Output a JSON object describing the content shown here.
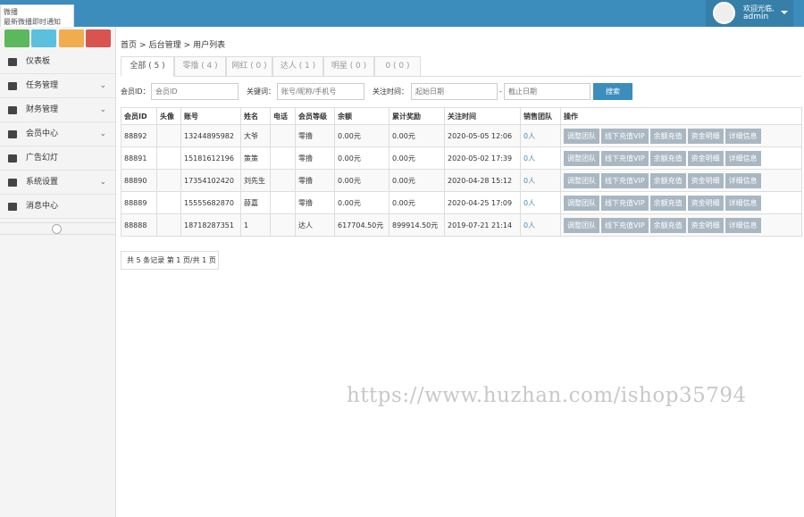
{
  "header": {
    "notice_title": "微播",
    "notice_sub": "最新微播即时通知",
    "welcome": "欢迎光临,",
    "user": "admin"
  },
  "sidebar": {
    "menu": [
      "仪表板",
      "任务管理",
      "财务管理",
      "会员中心",
      "广告幻灯",
      "系统设置",
      "消息中心"
    ]
  },
  "breadcrumb": {
    "items": [
      "首页",
      "后台管理",
      "用户列表"
    ],
    "separator": ">"
  },
  "tabs": [
    "全部 ( 5 )",
    "零撸 ( 4 )",
    "网红 ( 0 )",
    "达人 ( 1 )",
    "明星 ( 0 )",
    "0 ( 0 )"
  ],
  "filters": {
    "member_id_label": "会员ID：",
    "member_id_placeholder": "会员ID",
    "keyword_label": "关键词：",
    "keyword_placeholder": "账号/昵称/手机号",
    "time_label": "关注时间：",
    "start_placeholder": "起始日期",
    "range_separator": "-",
    "end_placeholder": "截止日期",
    "search": "搜索"
  },
  "table": {
    "headers": [
      "会员ID",
      "头像",
      "账号",
      "姓名",
      "电话",
      "会员等级",
      "余额",
      "累计奖励",
      "关注时间",
      "销售团队",
      "操作"
    ],
    "rows": [
      [
        "88892",
        null,
        "13244895982",
        "大爷",
        null,
        "零撸",
        "0.00元",
        "0.00元",
        "2020-05-05 12:06",
        "0人"
      ],
      [
        "88891",
        null,
        "15181612196",
        "策策",
        null,
        "零撸",
        "0.00元",
        "0.00元",
        "2020-05-02 17:39",
        "0人"
      ],
      [
        "88890",
        null,
        "17354102420",
        "刘先生",
        null,
        "零撸",
        "0.00元",
        "0.00元",
        "2020-04-28 15:12",
        "0人"
      ],
      [
        "88889",
        null,
        "15555682870",
        "薛嘉",
        null,
        "零撸",
        "0.00元",
        "0.00元",
        "2020-04-25 17:09",
        "0人"
      ],
      [
        "88888",
        null,
        "18718287351",
        "1",
        null,
        "达人",
        "617704.50元",
        "899914.50元",
        "2019-07-21 21:14",
        "0人"
      ]
    ],
    "actions": [
      "调整团队",
      "线下充值VIP",
      "余额充值",
      "资金明细",
      "详细信息"
    ]
  },
  "pagination": "共 5 条记录 第 1 页/共 1 页",
  "watermark": "https://www.huzhan.com/ishop35794"
}
